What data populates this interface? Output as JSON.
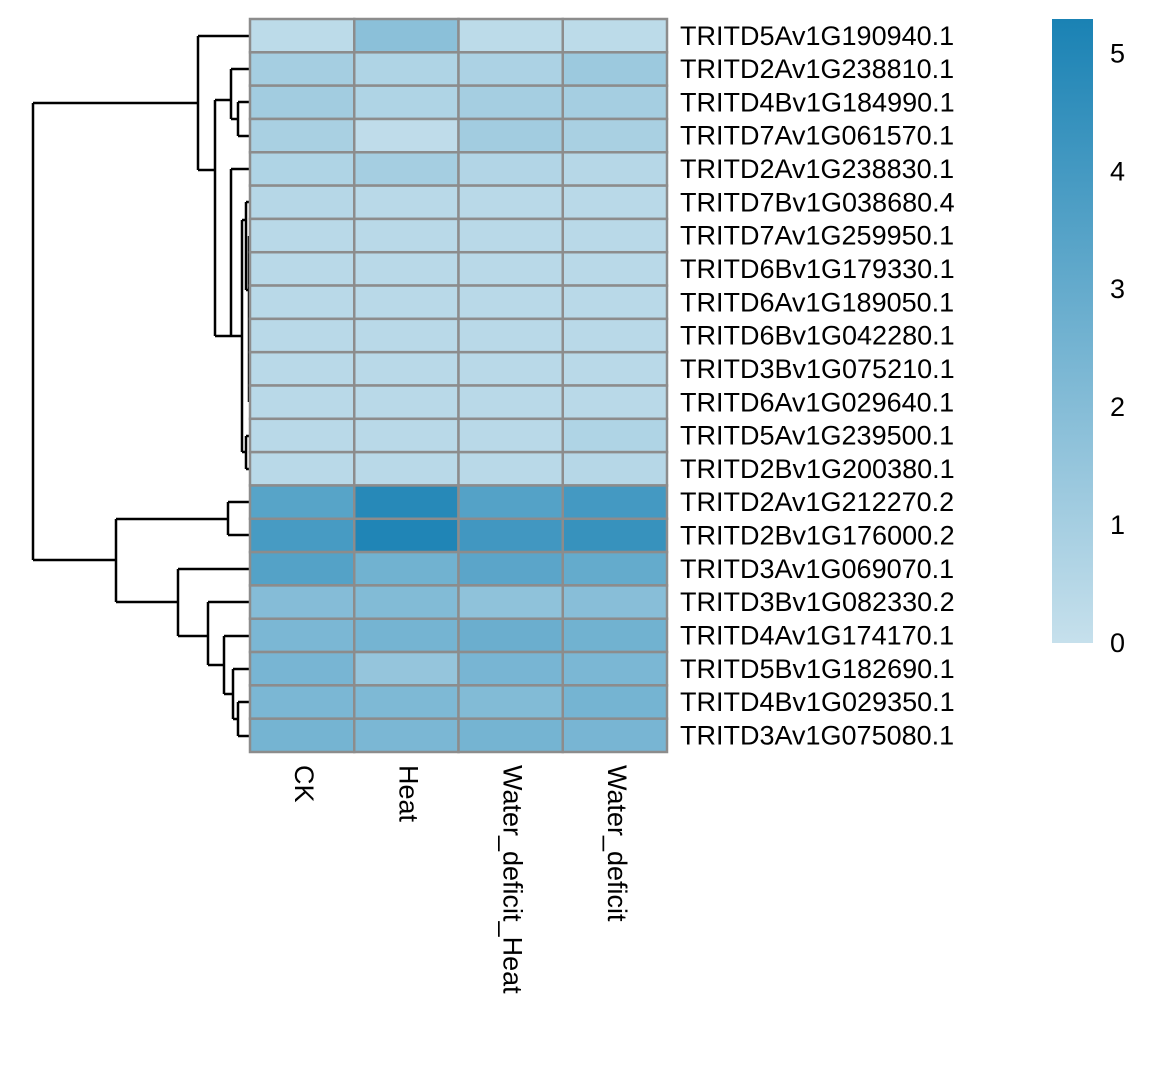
{
  "chart_data": {
    "type": "heatmap",
    "rows": [
      "TRITD5Av1G190940.1",
      "TRITD2Av1G238810.1",
      "TRITD4Bv1G184990.1",
      "TRITD7Av1G061570.1",
      "TRITD2Av1G238830.1",
      "TRITD7Bv1G038680.4",
      "TRITD7Av1G259950.1",
      "TRITD6Bv1G179330.1",
      "TRITD6Av1G189050.1",
      "TRITD6Bv1G042280.1",
      "TRITD3Bv1G075210.1",
      "TRITD6Av1G029640.1",
      "TRITD5Av1G239500.1",
      "TRITD2Bv1G200380.1",
      "TRITD2Av1G212270.2",
      "TRITD2Bv1G176000.2",
      "TRITD3Av1G069070.1",
      "TRITD3Bv1G082330.2",
      "TRITD4Av1G174170.1",
      "TRITD5Bv1G182690.1",
      "TRITD4Bv1G029350.1",
      "TRITD3Av1G075080.1"
    ],
    "columns": [
      "CK",
      "Heat",
      "Water_deficit_Heat",
      "Water_deficit"
    ],
    "values": [
      [
        0.3,
        1.8,
        0.3,
        0.3
      ],
      [
        1.0,
        0.7,
        0.8,
        1.3
      ],
      [
        1.1,
        0.7,
        1.0,
        1.0
      ],
      [
        0.9,
        0.2,
        1.1,
        0.9
      ],
      [
        0.7,
        1.0,
        0.6,
        0.5
      ],
      [
        0.5,
        0.4,
        0.4,
        0.4
      ],
      [
        0.4,
        0.4,
        0.4,
        0.4
      ],
      [
        0.4,
        0.4,
        0.4,
        0.4
      ],
      [
        0.4,
        0.4,
        0.4,
        0.4
      ],
      [
        0.4,
        0.4,
        0.4,
        0.4
      ],
      [
        0.4,
        0.4,
        0.4,
        0.4
      ],
      [
        0.4,
        0.4,
        0.4,
        0.4
      ],
      [
        0.4,
        0.4,
        0.4,
        0.7
      ],
      [
        0.4,
        0.4,
        0.4,
        0.5
      ],
      [
        3.4,
        4.9,
        3.5,
        4.0
      ],
      [
        3.9,
        5.1,
        4.1,
        4.4
      ],
      [
        3.5,
        2.6,
        3.3,
        3.0
      ],
      [
        2.0,
        2.1,
        1.7,
        1.9
      ],
      [
        2.3,
        2.5,
        2.8,
        2.6
      ],
      [
        2.4,
        1.5,
        2.4,
        2.3
      ],
      [
        2.3,
        2.2,
        2.1,
        2.5
      ],
      [
        2.5,
        2.3,
        2.5,
        2.4
      ]
    ],
    "colormap": [
      "#c6e0ec",
      "#1a82b4"
    ],
    "clim": [
      0,
      5.29
    ],
    "cticks": [
      0,
      1,
      2,
      3,
      4,
      5
    ]
  }
}
